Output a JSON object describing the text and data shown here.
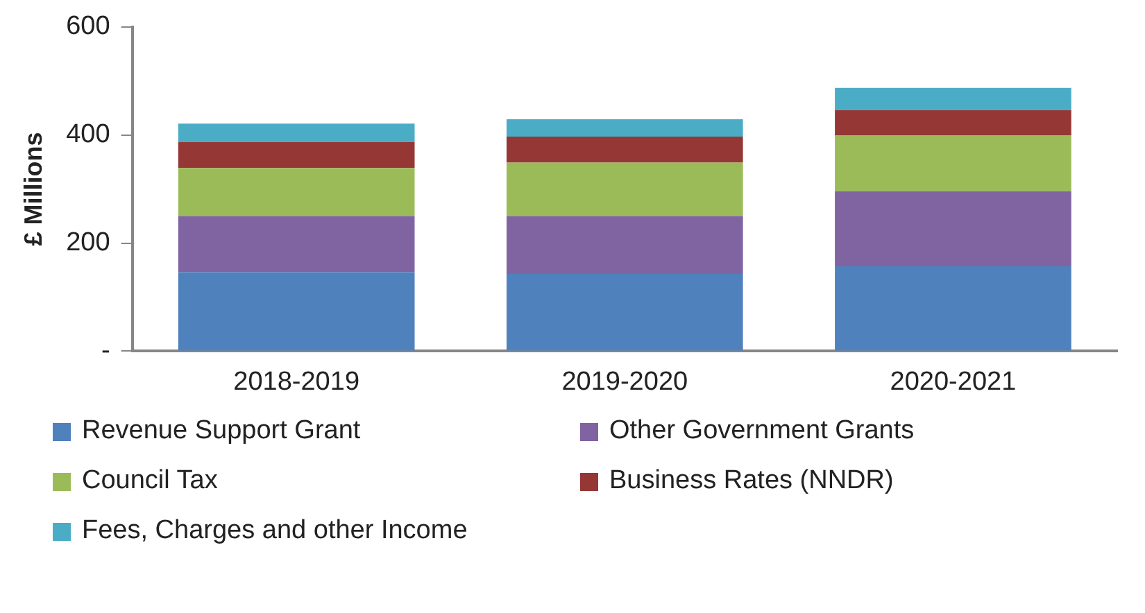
{
  "chart_data": {
    "type": "bar",
    "stacked": true,
    "ylabel": "£ Millions",
    "categories": [
      "2018-2019",
      "2019-2020",
      "2020-2021"
    ],
    "series": [
      {
        "name": "Revenue Support Grant",
        "color": "#4f81bd",
        "values": [
          146,
          143,
          157
        ]
      },
      {
        "name": "Other Government Grants",
        "color": "#8064a2",
        "values": [
          104,
          107,
          139
        ]
      },
      {
        "name": "Council Tax",
        "color": "#9bbb59",
        "values": [
          89,
          99,
          103
        ]
      },
      {
        "name": "Business Rates (NNDR)",
        "color": "#953735",
        "values": [
          48,
          48,
          47
        ]
      },
      {
        "name": "Fees, Charges and other Income",
        "color": "#4bacc6",
        "values": [
          34,
          32,
          41
        ]
      }
    ],
    "ylim": [
      0,
      600
    ],
    "yticks": [
      {
        "value": 0,
        "label": "-"
      },
      200,
      400,
      600
    ],
    "grid": false,
    "legend": "bottom"
  }
}
